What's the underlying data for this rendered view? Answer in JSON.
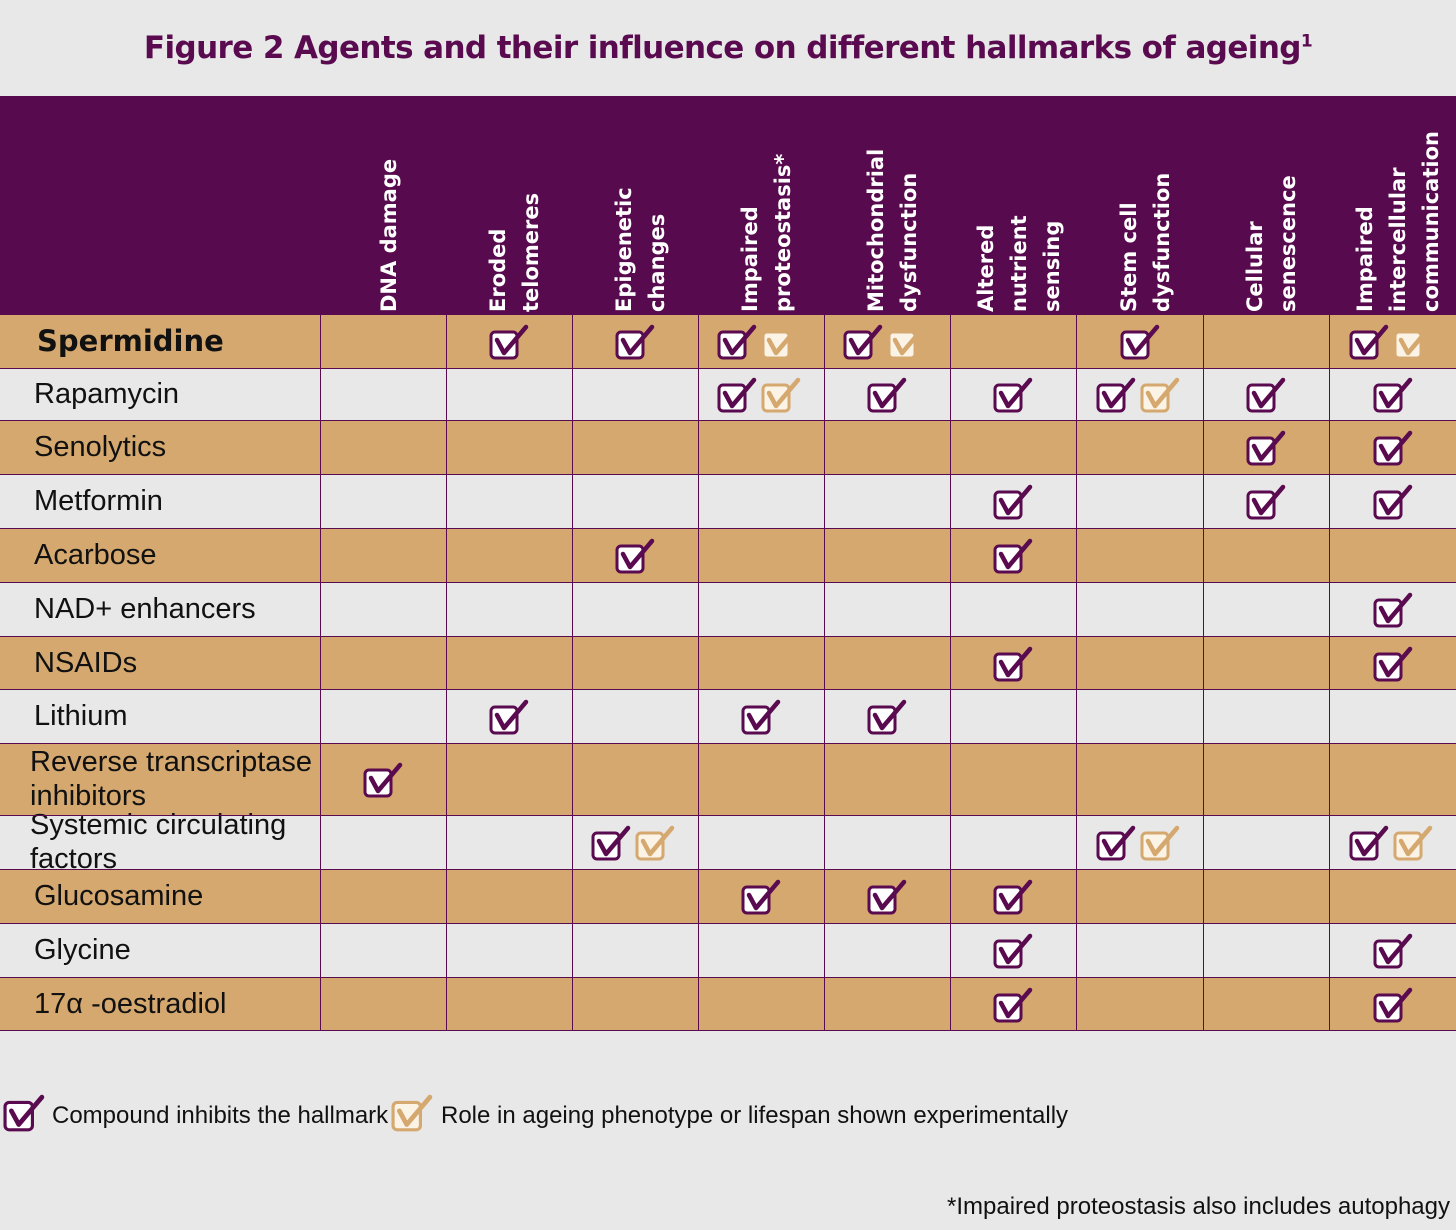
{
  "chart_data": {
    "type": "table",
    "title": "Figure 2 Agents and their influence on different hallmarks of ageing",
    "title_superscript": "1",
    "columns": [
      "DNA damage",
      "Eroded\ntelomeres",
      "Epigenetic\nchanges",
      "Impaired\nproteostasis*",
      "Mitochondrial\ndysfunction",
      "Altered\nnutrient\nsensing",
      "Stem cell\ndysfunction",
      "Cellular\nsenescence",
      "Impaired\nintercellular\ncommunication"
    ],
    "rows": [
      {
        "agent": "Spermidine",
        "bold": true,
        "marks": [
          [],
          [
            "inhibits"
          ],
          [
            "inhibits"
          ],
          [
            "inhibits",
            "experimental"
          ],
          [
            "inhibits",
            "experimental"
          ],
          [],
          [
            "inhibits"
          ],
          [],
          [
            "inhibits",
            "experimental"
          ]
        ]
      },
      {
        "agent": "Rapamycin",
        "marks": [
          [],
          [],
          [],
          [
            "inhibits",
            "experimental"
          ],
          [
            "inhibits"
          ],
          [
            "inhibits"
          ],
          [
            "inhibits",
            "experimental"
          ],
          [
            "inhibits"
          ],
          [
            "inhibits"
          ]
        ]
      },
      {
        "agent": "Senolytics",
        "marks": [
          [],
          [],
          [],
          [],
          [],
          [],
          [],
          [
            "inhibits"
          ],
          [
            "inhibits"
          ]
        ]
      },
      {
        "agent": "Metformin",
        "marks": [
          [],
          [],
          [],
          [],
          [],
          [
            "inhibits"
          ],
          [],
          [
            "inhibits"
          ],
          [
            "inhibits"
          ]
        ]
      },
      {
        "agent": "Acarbose",
        "marks": [
          [],
          [],
          [
            "inhibits"
          ],
          [],
          [],
          [
            "inhibits"
          ],
          [],
          [],
          []
        ]
      },
      {
        "agent": "NAD+ enhancers",
        "marks": [
          [],
          [],
          [],
          [],
          [],
          [],
          [],
          [],
          [
            "inhibits"
          ]
        ]
      },
      {
        "agent": "NSAIDs",
        "marks": [
          [],
          [],
          [],
          [],
          [],
          [
            "inhibits"
          ],
          [],
          [],
          [
            "inhibits"
          ]
        ]
      },
      {
        "agent": "Lithium",
        "marks": [
          [],
          [
            "inhibits"
          ],
          [],
          [
            "inhibits"
          ],
          [
            "inhibits"
          ],
          [],
          [],
          [],
          []
        ]
      },
      {
        "agent": "Reverse transcriptase\ninhibitors",
        "marks": [
          [
            "inhibits"
          ],
          [],
          [],
          [],
          [],
          [],
          [],
          [],
          []
        ]
      },
      {
        "agent": "Systemic circulating\nfactors",
        "marks": [
          [],
          [],
          [
            "inhibits",
            "experimental"
          ],
          [],
          [],
          [],
          [
            "inhibits",
            "experimental"
          ],
          [],
          [
            "inhibits",
            "experimental"
          ]
        ]
      },
      {
        "agent": "Glucosamine",
        "marks": [
          [],
          [],
          [],
          [
            "inhibits"
          ],
          [
            "inhibits"
          ],
          [
            "inhibits"
          ],
          [],
          [],
          []
        ]
      },
      {
        "agent": "Glycine",
        "marks": [
          [],
          [],
          [],
          [],
          [],
          [
            "inhibits"
          ],
          [],
          [],
          [
            "inhibits"
          ]
        ]
      },
      {
        "agent": "17α -oestradiol",
        "marks": [
          [],
          [],
          [],
          [],
          [],
          [
            "inhibits"
          ],
          [],
          [],
          [
            "inhibits"
          ]
        ]
      }
    ],
    "legend": [
      {
        "key": "inhibits",
        "label": "Compound inhibits the hallmark",
        "color": "#5a0a4f"
      },
      {
        "key": "experimental",
        "label": "Role in ageing phenotype or lifespan shown experimentally",
        "color": "#d5a86f"
      }
    ],
    "footnote": "*Impaired proteostasis also includes autophagy"
  },
  "colors": {
    "header": "#580a4e",
    "title": "#5a0a4f",
    "row_alt": "#d5a86f",
    "row_plain": "#e8e8e8"
  }
}
